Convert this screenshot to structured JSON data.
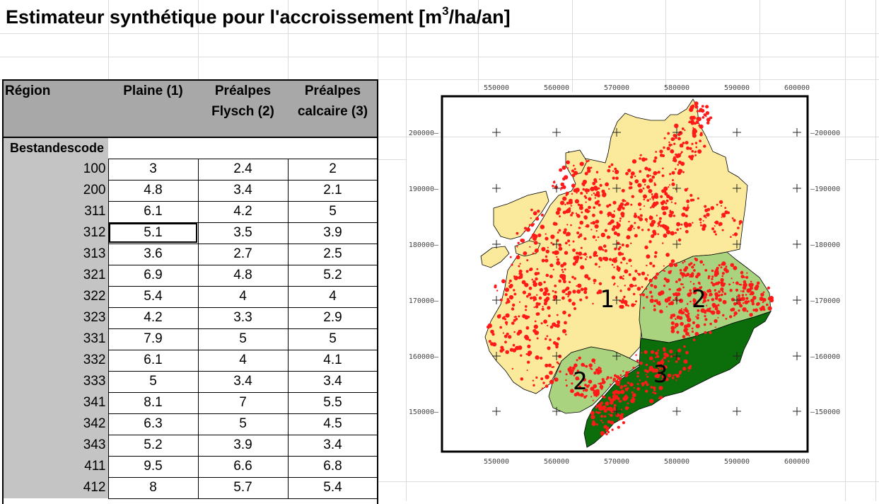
{
  "sheet": {
    "title_main": "Estimateur synthétique pour l'accroissement [m",
    "title_sup": "3",
    "title_tail": "/ha/an]"
  },
  "table": {
    "headers": [
      "Région",
      "Plaine (1)",
      "Préalpes Flysch (2)",
      "Préalpes calcaire (3)"
    ],
    "header_lines": [
      [
        "Région"
      ],
      [
        "Plaine (1)"
      ],
      [
        "Préalpes",
        "Flysch (2)"
      ],
      [
        "Préalpes",
        "calcaire (3)"
      ]
    ],
    "subheader": "Bestandescode",
    "rows": [
      {
        "code": "100",
        "plaine": "3",
        "flysch": "2.4",
        "calcaire": "2"
      },
      {
        "code": "200",
        "plaine": "4.8",
        "flysch": "3.4",
        "calcaire": "2.1"
      },
      {
        "code": "311",
        "plaine": "6.1",
        "flysch": "4.2",
        "calcaire": "5"
      },
      {
        "code": "312",
        "plaine": "5.1",
        "flysch": "3.5",
        "calcaire": "3.9"
      },
      {
        "code": "313",
        "plaine": "3.6",
        "flysch": "2.7",
        "calcaire": "2.5"
      },
      {
        "code": "321",
        "plaine": "6.9",
        "flysch": "4.8",
        "calcaire": "5.2"
      },
      {
        "code": "322",
        "plaine": "5.4",
        "flysch": "4",
        "calcaire": "4"
      },
      {
        "code": "323",
        "plaine": "4.2",
        "flysch": "3.3",
        "calcaire": "2.9"
      },
      {
        "code": "331",
        "plaine": "7.9",
        "flysch": "5",
        "calcaire": "5"
      },
      {
        "code": "332",
        "plaine": "6.1",
        "flysch": "4",
        "calcaire": "4.1"
      },
      {
        "code": "333",
        "plaine": "5",
        "flysch": "3.4",
        "calcaire": "3.4"
      },
      {
        "code": "341",
        "plaine": "8.1",
        "flysch": "7",
        "calcaire": "5.5"
      },
      {
        "code": "342",
        "plaine": "6.3",
        "flysch": "5",
        "calcaire": "4.5"
      },
      {
        "code": "343",
        "plaine": "5.2",
        "flysch": "3.9",
        "calcaire": "3.4"
      },
      {
        "code": "411",
        "plaine": "9.5",
        "flysch": "6.6",
        "calcaire": "6.8"
      },
      {
        "code": "412",
        "plaine": "8",
        "flysch": "5.7",
        "calcaire": "5.4"
      }
    ],
    "selected_row": 3
  },
  "map": {
    "x_ticks": [
      "550000",
      "560000",
      "570000",
      "580000",
      "590000",
      "600000"
    ],
    "y_ticks": [
      "200000",
      "190000",
      "180000",
      "170000",
      "160000",
      "150000"
    ],
    "region_labels": [
      "1",
      "2",
      "2",
      "3"
    ],
    "colors": {
      "plaine": "#fbe99c",
      "flysch": "#a9d37e",
      "calcaire": "#0b6e0b",
      "forest": "#ff1a1a"
    }
  }
}
